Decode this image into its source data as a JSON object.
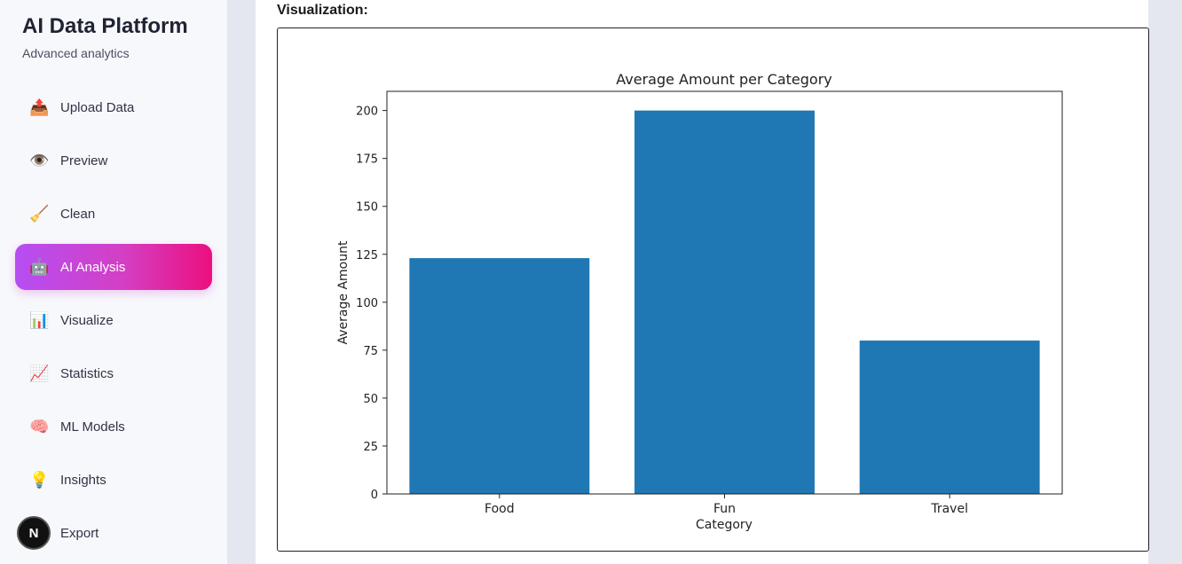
{
  "sidebar": {
    "title": "AI Data Platform",
    "subtitle": "Advanced analytics",
    "items": [
      {
        "label": "Upload Data",
        "icon": "📤",
        "icon_name": "outbox-tray-icon"
      },
      {
        "label": "Preview",
        "icon": "👁️",
        "icon_name": "eye-icon"
      },
      {
        "label": "Clean",
        "icon": "🧹",
        "icon_name": "broom-icon"
      },
      {
        "label": "AI Analysis",
        "icon": "🤖",
        "icon_name": "robot-icon",
        "active": true
      },
      {
        "label": "Visualize",
        "icon": "📊",
        "icon_name": "bar-chart-icon"
      },
      {
        "label": "Statistics",
        "icon": "📈",
        "icon_name": "line-chart-icon"
      },
      {
        "label": "ML Models",
        "icon": "🧠",
        "icon_name": "brain-icon"
      },
      {
        "label": "Insights",
        "icon": "💡",
        "icon_name": "light-bulb-icon"
      },
      {
        "label": "Export",
        "icon": "",
        "icon_name": "export-icon"
      }
    ],
    "badge": "N",
    "active_gradient": [
      "#b64ef3",
      "#ec0f7f"
    ]
  },
  "main": {
    "section_title": "Visualization:"
  },
  "chart_data": {
    "type": "bar",
    "title": "Average Amount per Category",
    "xlabel": "Category",
    "ylabel": "Average Amount",
    "categories": [
      "Food",
      "Fun",
      "Travel"
    ],
    "values": [
      123,
      200,
      80
    ],
    "ylim": [
      0,
      210
    ],
    "yticks": [
      0,
      25,
      50,
      75,
      100,
      125,
      150,
      175,
      200
    ],
    "bar_color": "#1f77b4",
    "grid": false
  }
}
